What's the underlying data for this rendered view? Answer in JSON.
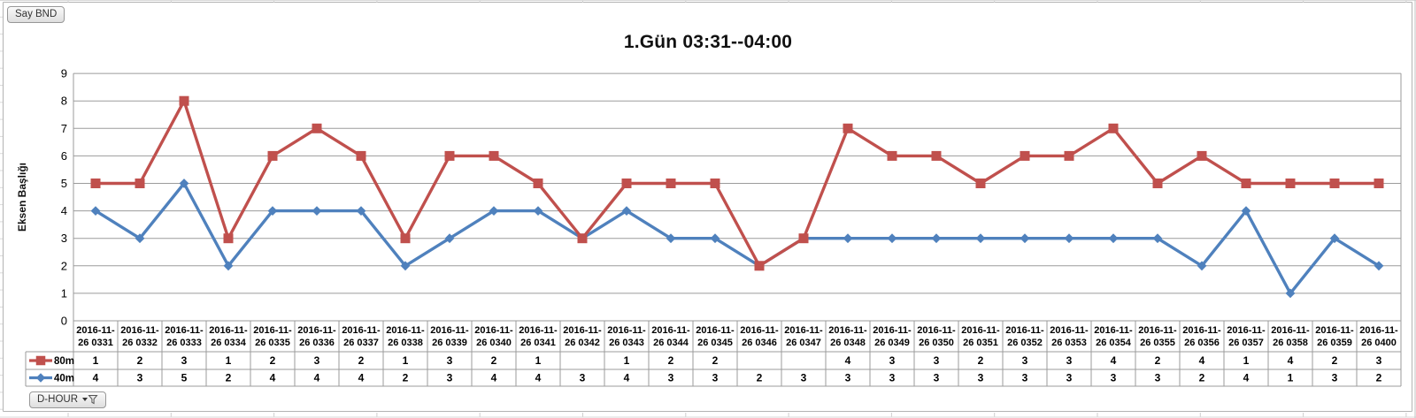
{
  "buttons": {
    "say_bnd": "Say BND",
    "d_hour": "D-HOUR"
  },
  "chart_data": {
    "type": "line",
    "subtype": "stacked line with markers",
    "title": "1.Gün 03:31--04:00",
    "ylabel": "Eksen Başlığı",
    "xlabel": "",
    "ylim": [
      0,
      9
    ],
    "yticks": [
      0,
      1,
      2,
      3,
      4,
      5,
      6,
      7,
      8,
      9
    ],
    "grid": true,
    "legend_position": "data-table-left",
    "categories": [
      "2016-11-26 0331",
      "2016-11-26 0332",
      "2016-11-26 0333",
      "2016-11-26 0334",
      "2016-11-26 0335",
      "2016-11-26 0336",
      "2016-11-26 0337",
      "2016-11-26 0338",
      "2016-11-26 0339",
      "2016-11-26 0340",
      "2016-11-26 0341",
      "2016-11-26 0342",
      "2016-11-26 0343",
      "2016-11-26 0344",
      "2016-11-26 0345",
      "2016-11-26 0346",
      "2016-11-26 0347",
      "2016-11-26 0348",
      "2016-11-26 0349",
      "2016-11-26 0350",
      "2016-11-26 0351",
      "2016-11-26 0352",
      "2016-11-26 0353",
      "2016-11-26 0354",
      "2016-11-26 0355",
      "2016-11-26 0356",
      "2016-11-26 0357",
      "2016-11-26 0358",
      "2016-11-26 0359",
      "2016-11-26 0400"
    ],
    "series": [
      {
        "name": "80m",
        "color": "#C0504D",
        "marker": "square",
        "stacked_on": "40m",
        "values": [
          1,
          2,
          3,
          1,
          2,
          3,
          2,
          1,
          3,
          2,
          1,
          null,
          1,
          2,
          2,
          null,
          null,
          4,
          3,
          3,
          2,
          3,
          3,
          4,
          2,
          4,
          1,
          4,
          2,
          3
        ]
      },
      {
        "name": "40m",
        "color": "#4F81BD",
        "marker": "diamond",
        "stacked_on": null,
        "values": [
          4,
          3,
          5,
          2,
          4,
          4,
          4,
          2,
          3,
          4,
          4,
          3,
          4,
          3,
          3,
          2,
          3,
          3,
          3,
          3,
          3,
          3,
          3,
          3,
          3,
          2,
          4,
          1,
          3,
          2
        ]
      }
    ],
    "data_table": {
      "row_labels": [
        "80m",
        "40m"
      ],
      "rows": [
        [
          "1",
          "2",
          "3",
          "1",
          "2",
          "3",
          "2",
          "1",
          "3",
          "2",
          "1",
          "",
          "1",
          "2",
          "2",
          "",
          "",
          "4",
          "3",
          "3",
          "2",
          "3",
          "3",
          "4",
          "2",
          "4",
          "1",
          "4",
          "2",
          "3"
        ],
        [
          "4",
          "3",
          "5",
          "2",
          "4",
          "4",
          "4",
          "2",
          "3",
          "4",
          "4",
          "3",
          "4",
          "3",
          "3",
          "2",
          "3",
          "3",
          "3",
          "3",
          "3",
          "3",
          "3",
          "3",
          "3",
          "2",
          "4",
          "1",
          "3",
          "2"
        ]
      ]
    }
  },
  "colors": {
    "series_80m": "#C0504D",
    "series_40m": "#4F81BD",
    "gridline": "#9b9b9b",
    "table_border": "#9b9b9b",
    "frame": "#b3b3b3"
  }
}
